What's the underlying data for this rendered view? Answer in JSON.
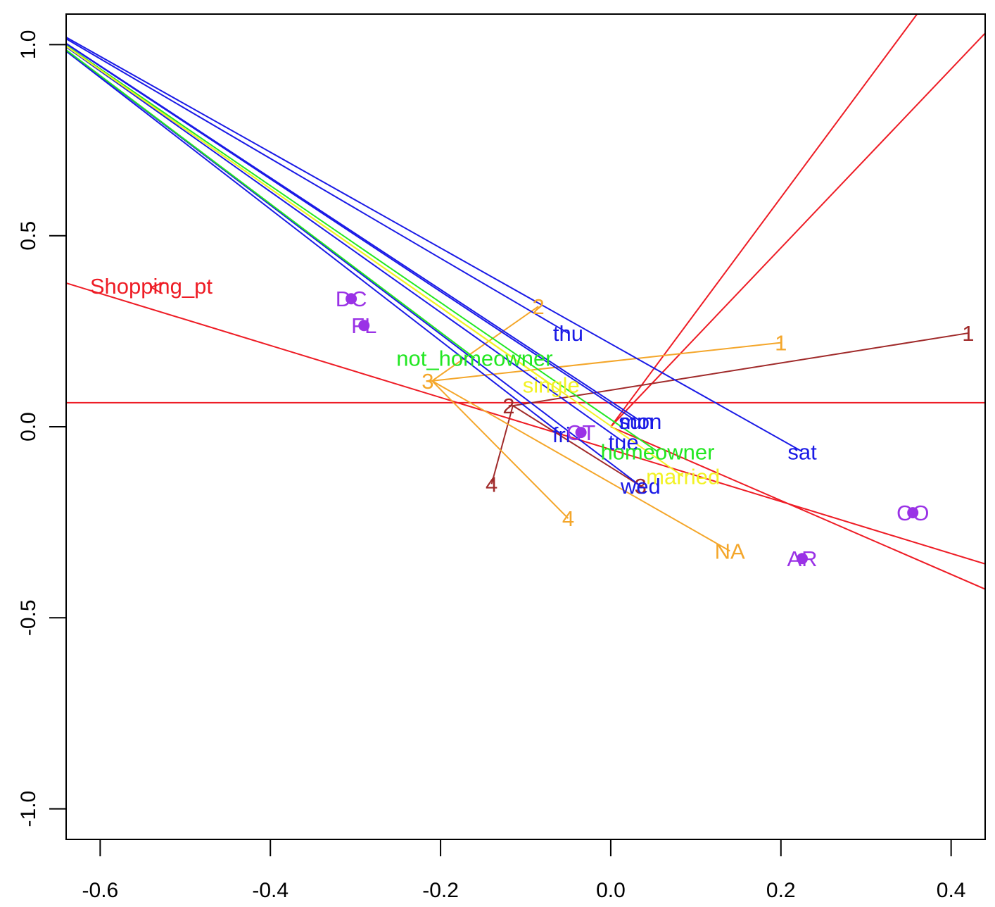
{
  "chart_data": {
    "type": "scatter",
    "title": "",
    "xlabel": "",
    "ylabel": "",
    "xlim": [
      -0.64,
      0.44
    ],
    "ylim": [
      -1.08,
      1.08
    ],
    "x_ticks": [
      -0.6,
      -0.4,
      -0.2,
      0.0,
      0.2,
      0.4
    ],
    "x_tick_labels": [
      "-0.6",
      "-0.4",
      "-0.2",
      "0.0",
      "0.2",
      "0.4"
    ],
    "y_ticks": [
      -1.0,
      -0.5,
      0.0,
      0.5,
      1.0
    ],
    "y_tick_labels": [
      "-1.0",
      "-0.5",
      "0.0",
      "0.5",
      "1.0"
    ],
    "grid": false,
    "legend": "none",
    "center": [
      0.0,
      0.0
    ],
    "reference_lines": [
      {
        "color": "#ee1c25",
        "x1": -0.64,
        "y1": 0.063,
        "x2": 0.44,
        "y2": 0.063,
        "through_origin": true
      },
      {
        "color": "#ee1c25",
        "x1": -0.64,
        "y1": 0.376,
        "x2": 0.44,
        "y2": -0.359,
        "through_origin": true
      },
      {
        "color": "#ee1c25",
        "x1": 0.0,
        "y1": 0.0,
        "x2": 0.44,
        "y2": 1.03
      },
      {
        "color": "#ee1c25",
        "x1": 0.0,
        "y1": 0.0,
        "x2": 0.36,
        "y2": 1.08
      },
      {
        "color": "#ee1c25",
        "x1": 0.0,
        "y1": 0.0,
        "x2": 0.44,
        "y2": -0.425
      }
    ],
    "series": [
      {
        "name": "",
        "color": "#a02a2a",
        "anchor": {
          "x": -0.115,
          "y": 0.055
        },
        "points": [
          {
            "label": "1",
            "x": 0.42,
            "y": 0.245
          },
          {
            "label": "2",
            "x": -0.12,
            "y": 0.055
          },
          {
            "label": "3",
            "x": 0.035,
            "y": -0.155
          },
          {
            "label": "4",
            "x": -0.14,
            "y": -0.15
          }
        ]
      },
      {
        "name": "",
        "color": "#f4a62a",
        "anchor": {
          "x": -0.21,
          "y": 0.12
        },
        "points": [
          {
            "label": "1",
            "x": 0.2,
            "y": 0.22
          },
          {
            "label": "2",
            "x": -0.085,
            "y": 0.315
          },
          {
            "label": "3",
            "x": -0.215,
            "y": 0.12
          },
          {
            "label": "4",
            "x": -0.05,
            "y": -0.24
          },
          {
            "label": "NA",
            "x": 0.14,
            "y": -0.325
          }
        ]
      },
      {
        "name": "",
        "color": "#1a1ae6",
        "points": [
          {
            "label": "thu",
            "x": -0.05,
            "y": 0.245
          },
          {
            "label": "sun",
            "x": 0.03,
            "y": 0.015
          },
          {
            "label": "mon",
            "x": 0.035,
            "y": 0.015
          },
          {
            "label": "fri",
            "x": -0.058,
            "y": -0.02
          },
          {
            "label": "tue",
            "x": 0.015,
            "y": -0.04
          },
          {
            "label": "sat",
            "x": 0.225,
            "y": -0.065
          },
          {
            "label": "wed",
            "x": 0.035,
            "y": -0.155
          }
        ]
      },
      {
        "name": "",
        "color": "#22e722",
        "points": [
          {
            "label": "not_homeowner",
            "x": -0.16,
            "y": 0.18
          },
          {
            "label": "homeowner",
            "x": 0.055,
            "y": -0.065
          }
        ]
      },
      {
        "name": "",
        "color": "#f2f224",
        "points": [
          {
            "label": "single",
            "x": -0.07,
            "y": 0.11
          },
          {
            "label": "married",
            "x": 0.085,
            "y": -0.13
          }
        ]
      },
      {
        "name": "",
        "color": "#9a32e6",
        "points": [
          {
            "label": "DC",
            "x": -0.305,
            "y": 0.335
          },
          {
            "label": "FL",
            "x": -0.29,
            "y": 0.265
          },
          {
            "label": "CT",
            "x": -0.035,
            "y": -0.015
          },
          {
            "label": "CO",
            "x": 0.355,
            "y": -0.225
          },
          {
            "label": "AR",
            "x": 0.225,
            "y": -0.345
          }
        ]
      }
    ],
    "arrow_labels": [
      {
        "label": "Shopping_pt",
        "color": "#ee1c25",
        "x": -0.54,
        "y": 0.365
      }
    ]
  }
}
